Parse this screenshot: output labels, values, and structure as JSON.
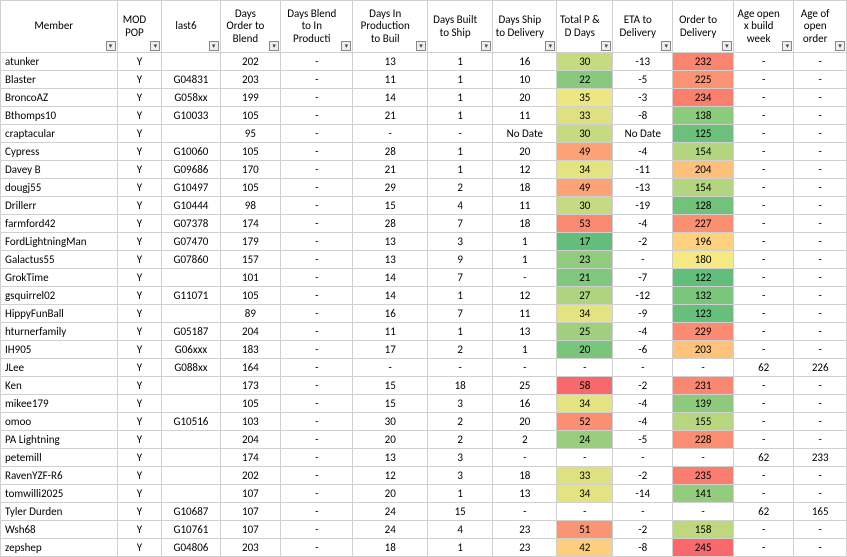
{
  "columns": [
    {
      "key": "member",
      "label": "Member",
      "align": "left"
    },
    {
      "key": "modpop",
      "label": "MOD POP",
      "align": "center"
    },
    {
      "key": "last6",
      "label": "last6",
      "align": "center"
    },
    {
      "key": "daysOrderBlend",
      "label": "Days Order to Blend",
      "align": "center"
    },
    {
      "key": "daysBlendInProd",
      "label": "Days Blend to  In Producti",
      "align": "center"
    },
    {
      "key": "daysInProdBuilt",
      "label": "Days In Production to Buil",
      "align": "center"
    },
    {
      "key": "daysBuiltShip",
      "label": "Days Built to Ship",
      "align": "center"
    },
    {
      "key": "daysShipDelivery",
      "label": "Days Ship to Delivery",
      "align": "center"
    },
    {
      "key": "totalPD",
      "label": "Total P & D Days",
      "align": "center",
      "heat": "pd"
    },
    {
      "key": "etaDelivery",
      "label": "ETA to Delivery",
      "align": "center"
    },
    {
      "key": "orderDelivery",
      "label": "Order to Delivery",
      "align": "center",
      "heat": "od"
    },
    {
      "key": "ageOpenBuildWeek",
      "label": "Age open x build week",
      "align": "center"
    },
    {
      "key": "ageOpenOrder",
      "label": "Age of open order",
      "align": "center"
    }
  ],
  "heat": {
    "pd": {
      "min": 17,
      "max": 58,
      "lowColor": "#63be7b",
      "midColor": "#ffeb84",
      "highColor": "#f8696b"
    },
    "od": {
      "min": 122,
      "max": 245,
      "lowColor": "#63be7b",
      "midColor": "#ffeb84",
      "highColor": "#f8696b"
    }
  },
  "rows": [
    {
      "member": "atunker",
      "modpop": "Y",
      "last6": "",
      "daysOrderBlend": "202",
      "daysBlendInProd": "-",
      "daysInProdBuilt": "13",
      "daysBuiltShip": "1",
      "daysShipDelivery": "16",
      "totalPD": "30",
      "etaDelivery": "-13",
      "orderDelivery": "232",
      "ageOpenBuildWeek": "-",
      "ageOpenOrder": "-"
    },
    {
      "member": "Blaster",
      "modpop": "Y",
      "last6": "G04831",
      "daysOrderBlend": "203",
      "daysBlendInProd": "-",
      "daysInProdBuilt": "11",
      "daysBuiltShip": "1",
      "daysShipDelivery": "10",
      "totalPD": "22",
      "etaDelivery": "-5",
      "orderDelivery": "225",
      "ageOpenBuildWeek": "-",
      "ageOpenOrder": "-"
    },
    {
      "member": "BroncoAZ",
      "modpop": "Y",
      "last6": "G058xx",
      "daysOrderBlend": "199",
      "daysBlendInProd": "-",
      "daysInProdBuilt": "14",
      "daysBuiltShip": "1",
      "daysShipDelivery": "20",
      "totalPD": "35",
      "etaDelivery": "-3",
      "orderDelivery": "234",
      "ageOpenBuildWeek": "-",
      "ageOpenOrder": "-"
    },
    {
      "member": "Bthomps10",
      "modpop": "Y",
      "last6": "G10033",
      "daysOrderBlend": "105",
      "daysBlendInProd": "-",
      "daysInProdBuilt": "21",
      "daysBuiltShip": "1",
      "daysShipDelivery": "11",
      "totalPD": "33",
      "etaDelivery": "-8",
      "orderDelivery": "138",
      "ageOpenBuildWeek": "-",
      "ageOpenOrder": "-"
    },
    {
      "member": "craptacular",
      "modpop": "Y",
      "last6": "",
      "daysOrderBlend": "95",
      "daysBlendInProd": "-",
      "daysInProdBuilt": "-",
      "daysBuiltShip": "-",
      "daysShipDelivery": "No Date",
      "totalPD": "30",
      "etaDelivery": "No Date",
      "orderDelivery": "125",
      "ageOpenBuildWeek": "-",
      "ageOpenOrder": "-"
    },
    {
      "member": "Cypress",
      "modpop": "Y",
      "last6": "G10060",
      "daysOrderBlend": "105",
      "daysBlendInProd": "-",
      "daysInProdBuilt": "28",
      "daysBuiltShip": "1",
      "daysShipDelivery": "20",
      "totalPD": "49",
      "etaDelivery": "-4",
      "orderDelivery": "154",
      "ageOpenBuildWeek": "-",
      "ageOpenOrder": "-"
    },
    {
      "member": "Davey B",
      "modpop": "Y",
      "last6": "G09686",
      "daysOrderBlend": "170",
      "daysBlendInProd": "-",
      "daysInProdBuilt": "21",
      "daysBuiltShip": "1",
      "daysShipDelivery": "12",
      "totalPD": "34",
      "etaDelivery": "-11",
      "orderDelivery": "204",
      "ageOpenBuildWeek": "-",
      "ageOpenOrder": "-"
    },
    {
      "member": "dougj55",
      "modpop": "Y",
      "last6": "G10497",
      "daysOrderBlend": "105",
      "daysBlendInProd": "-",
      "daysInProdBuilt": "29",
      "daysBuiltShip": "2",
      "daysShipDelivery": "18",
      "totalPD": "49",
      "etaDelivery": "-13",
      "orderDelivery": "154",
      "ageOpenBuildWeek": "-",
      "ageOpenOrder": "-"
    },
    {
      "member": "Drillerr",
      "modpop": "Y",
      "last6": "G10444",
      "daysOrderBlend": "98",
      "daysBlendInProd": "-",
      "daysInProdBuilt": "15",
      "daysBuiltShip": "4",
      "daysShipDelivery": "11",
      "totalPD": "30",
      "etaDelivery": "-19",
      "orderDelivery": "128",
      "ageOpenBuildWeek": "-",
      "ageOpenOrder": "-"
    },
    {
      "member": "farmford42",
      "modpop": "Y",
      "last6": "G07378",
      "daysOrderBlend": "174",
      "daysBlendInProd": "-",
      "daysInProdBuilt": "28",
      "daysBuiltShip": "7",
      "daysShipDelivery": "18",
      "totalPD": "53",
      "etaDelivery": "-4",
      "orderDelivery": "227",
      "ageOpenBuildWeek": "-",
      "ageOpenOrder": "-"
    },
    {
      "member": "FordLightningMan",
      "modpop": "Y",
      "last6": "G07470",
      "daysOrderBlend": "179",
      "daysBlendInProd": "-",
      "daysInProdBuilt": "13",
      "daysBuiltShip": "3",
      "daysShipDelivery": "1",
      "totalPD": "17",
      "etaDelivery": "-2",
      "orderDelivery": "196",
      "ageOpenBuildWeek": "-",
      "ageOpenOrder": "-"
    },
    {
      "member": "Galactus55",
      "modpop": "Y",
      "last6": "G07860",
      "daysOrderBlend": "157",
      "daysBlendInProd": "-",
      "daysInProdBuilt": "13",
      "daysBuiltShip": "9",
      "daysShipDelivery": "1",
      "totalPD": "23",
      "etaDelivery": "-",
      "orderDelivery": "180",
      "ageOpenBuildWeek": "-",
      "ageOpenOrder": "-"
    },
    {
      "member": "GrokTime",
      "modpop": "Y",
      "last6": "",
      "daysOrderBlend": "101",
      "daysBlendInProd": "-",
      "daysInProdBuilt": "14",
      "daysBuiltShip": "7",
      "daysShipDelivery": "-",
      "totalPD": "21",
      "etaDelivery": "-7",
      "orderDelivery": "122",
      "ageOpenBuildWeek": "-",
      "ageOpenOrder": "-"
    },
    {
      "member": "gsquirrel02",
      "modpop": "Y",
      "last6": "G11071",
      "daysOrderBlend": "105",
      "daysBlendInProd": "-",
      "daysInProdBuilt": "14",
      "daysBuiltShip": "1",
      "daysShipDelivery": "12",
      "totalPD": "27",
      "etaDelivery": "-12",
      "orderDelivery": "132",
      "ageOpenBuildWeek": "-",
      "ageOpenOrder": "-"
    },
    {
      "member": "HippyFunBall",
      "modpop": "Y",
      "last6": "",
      "daysOrderBlend": "89",
      "daysBlendInProd": "-",
      "daysInProdBuilt": "16",
      "daysBuiltShip": "7",
      "daysShipDelivery": "11",
      "totalPD": "34",
      "etaDelivery": "-9",
      "orderDelivery": "123",
      "ageOpenBuildWeek": "-",
      "ageOpenOrder": "-"
    },
    {
      "member": "hturnerfamily",
      "modpop": "Y",
      "last6": "G05187",
      "daysOrderBlend": "204",
      "daysBlendInProd": "-",
      "daysInProdBuilt": "11",
      "daysBuiltShip": "1",
      "daysShipDelivery": "13",
      "totalPD": "25",
      "etaDelivery": "-4",
      "orderDelivery": "229",
      "ageOpenBuildWeek": "-",
      "ageOpenOrder": "-"
    },
    {
      "member": "IH905",
      "modpop": "Y",
      "last6": "G06xxx",
      "daysOrderBlend": "183",
      "daysBlendInProd": "-",
      "daysInProdBuilt": "17",
      "daysBuiltShip": "2",
      "daysShipDelivery": "1",
      "totalPD": "20",
      "etaDelivery": "-6",
      "orderDelivery": "203",
      "ageOpenBuildWeek": "-",
      "ageOpenOrder": "-"
    },
    {
      "member": "JLee",
      "modpop": "Y",
      "last6": "G088xx",
      "daysOrderBlend": "164",
      "daysBlendInProd": "-",
      "daysInProdBuilt": "-",
      "daysBuiltShip": "-",
      "daysShipDelivery": "-",
      "totalPD": "-",
      "etaDelivery": "-",
      "orderDelivery": "-",
      "ageOpenBuildWeek": "62",
      "ageOpenOrder": "226"
    },
    {
      "member": "Ken",
      "modpop": "Y",
      "last6": "",
      "daysOrderBlend": "173",
      "daysBlendInProd": "-",
      "daysInProdBuilt": "15",
      "daysBuiltShip": "18",
      "daysShipDelivery": "25",
      "totalPD": "58",
      "etaDelivery": "-2",
      "orderDelivery": "231",
      "ageOpenBuildWeek": "-",
      "ageOpenOrder": "-"
    },
    {
      "member": "mikee179",
      "modpop": "Y",
      "last6": "",
      "daysOrderBlend": "105",
      "daysBlendInProd": "-",
      "daysInProdBuilt": "15",
      "daysBuiltShip": "3",
      "daysShipDelivery": "16",
      "totalPD": "34",
      "etaDelivery": "-4",
      "orderDelivery": "139",
      "ageOpenBuildWeek": "-",
      "ageOpenOrder": "-"
    },
    {
      "member": "omoo",
      "modpop": "Y",
      "last6": "G10516",
      "daysOrderBlend": "103",
      "daysBlendInProd": "-",
      "daysInProdBuilt": "30",
      "daysBuiltShip": "2",
      "daysShipDelivery": "20",
      "totalPD": "52",
      "etaDelivery": "-4",
      "orderDelivery": "155",
      "ageOpenBuildWeek": "-",
      "ageOpenOrder": "-"
    },
    {
      "member": "PA Lightning",
      "modpop": "Y",
      "last6": "",
      "daysOrderBlend": "204",
      "daysBlendInProd": "-",
      "daysInProdBuilt": "20",
      "daysBuiltShip": "2",
      "daysShipDelivery": "2",
      "totalPD": "24",
      "etaDelivery": "-5",
      "orderDelivery": "228",
      "ageOpenBuildWeek": "-",
      "ageOpenOrder": "-"
    },
    {
      "member": "petemill",
      "modpop": "Y",
      "last6": "",
      "daysOrderBlend": "174",
      "daysBlendInProd": "-",
      "daysInProdBuilt": "13",
      "daysBuiltShip": "3",
      "daysShipDelivery": "-",
      "totalPD": "-",
      "etaDelivery": "-",
      "orderDelivery": "-",
      "ageOpenBuildWeek": "62",
      "ageOpenOrder": "233"
    },
    {
      "member": "RavenYZF-R6",
      "modpop": "Y",
      "last6": "",
      "daysOrderBlend": "202",
      "daysBlendInProd": "-",
      "daysInProdBuilt": "12",
      "daysBuiltShip": "3",
      "daysShipDelivery": "18",
      "totalPD": "33",
      "etaDelivery": "-2",
      "orderDelivery": "235",
      "ageOpenBuildWeek": "-",
      "ageOpenOrder": "-"
    },
    {
      "member": "tomwilli2025",
      "modpop": "Y",
      "last6": "",
      "daysOrderBlend": "107",
      "daysBlendInProd": "-",
      "daysInProdBuilt": "20",
      "daysBuiltShip": "1",
      "daysShipDelivery": "13",
      "totalPD": "34",
      "etaDelivery": "-14",
      "orderDelivery": "141",
      "ageOpenBuildWeek": "-",
      "ageOpenOrder": "-"
    },
    {
      "member": "Tyler Durden",
      "modpop": "Y",
      "last6": "G10687",
      "daysOrderBlend": "107",
      "daysBlendInProd": "-",
      "daysInProdBuilt": "24",
      "daysBuiltShip": "15",
      "daysShipDelivery": "-",
      "totalPD": "-",
      "etaDelivery": "-",
      "orderDelivery": "-",
      "ageOpenBuildWeek": "62",
      "ageOpenOrder": "165"
    },
    {
      "member": "Wsh68",
      "modpop": "Y",
      "last6": "G10761",
      "daysOrderBlend": "107",
      "daysBlendInProd": "-",
      "daysInProdBuilt": "24",
      "daysBuiltShip": "4",
      "daysShipDelivery": "23",
      "totalPD": "51",
      "etaDelivery": "-2",
      "orderDelivery": "158",
      "ageOpenBuildWeek": "-",
      "ageOpenOrder": "-"
    },
    {
      "member": "zepshep",
      "modpop": "Y",
      "last6": "G04806",
      "daysOrderBlend": "203",
      "daysBlendInProd": "-",
      "daysInProdBuilt": "18",
      "daysBuiltShip": "1",
      "daysShipDelivery": "23",
      "totalPD": "42",
      "etaDelivery": "-8",
      "orderDelivery": "245",
      "ageOpenBuildWeek": "-",
      "ageOpenOrder": "-"
    }
  ]
}
